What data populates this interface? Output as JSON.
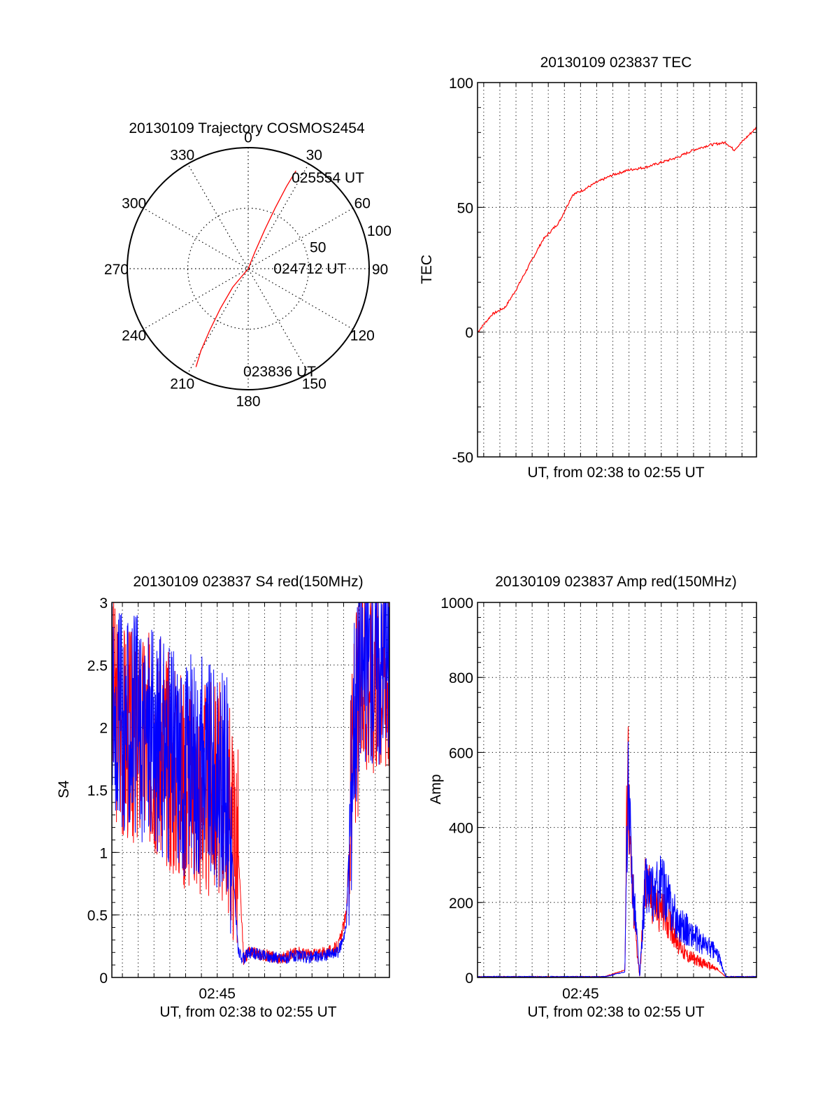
{
  "colors": {
    "red": "#ff0000",
    "blue": "#0000ff",
    "axis": "#000000",
    "grid": "#000000"
  },
  "chart_data": [
    {
      "id": "trajectory",
      "type": "polar",
      "title": "20130109 Trajectory COSMOS2454",
      "azimuth_labels": [
        "0",
        "30",
        "60",
        "90",
        "120",
        "150",
        "180",
        "210",
        "240",
        "270",
        "300",
        "330"
      ],
      "radial_labels": [
        "50",
        "100"
      ],
      "radius_max": 100,
      "track": {
        "color": "#ff0000",
        "points": [
          {
            "az": 208,
            "r": 92
          },
          {
            "az": 210,
            "r": 78
          },
          {
            "az": 212,
            "r": 60
          },
          {
            "az": 215,
            "r": 40
          },
          {
            "az": 220,
            "r": 20
          },
          {
            "az": 20,
            "r": 0
          },
          {
            "az": 22,
            "r": 15
          },
          {
            "az": 23,
            "r": 35
          },
          {
            "az": 24,
            "r": 55
          },
          {
            "az": 25,
            "r": 75
          },
          {
            "az": 26,
            "r": 90
          }
        ]
      },
      "annotations": [
        {
          "text": "025554 UT",
          "az": 28,
          "r": 85
        },
        {
          "text": "024712 UT",
          "az": 90,
          "r": 25
        },
        {
          "text": "023836 UT",
          "az": 180,
          "r": 85
        }
      ]
    },
    {
      "id": "tec",
      "type": "line",
      "title": "20130109 023837 TEC",
      "xlabel": "UT, from 02:38 to 02:55 UT",
      "ylabel": "TEC",
      "xlim": [
        "02:38:37",
        "02:55:54"
      ],
      "ylim": [
        -50,
        100
      ],
      "yticks": [
        -50,
        0,
        50,
        100
      ],
      "grid": true,
      "series": [
        {
          "color": "#ff0000",
          "x": [
            "02:38:37",
            "02:39:30",
            "02:40:20",
            "02:41:00",
            "02:41:50",
            "02:42:40",
            "02:43:40",
            "02:44:30",
            "02:45:10",
            "02:46:00",
            "02:47:00",
            "02:48:00",
            "02:49:00",
            "02:50:00",
            "02:51:00",
            "02:52:00",
            "02:53:00",
            "02:54:00",
            "02:54:30",
            "02:55:54"
          ],
          "y": [
            0,
            7,
            10,
            17,
            27,
            37,
            44,
            55,
            57,
            60,
            63,
            65,
            66,
            68,
            70,
            73,
            75,
            76,
            73,
            82
          ]
        }
      ]
    },
    {
      "id": "s4",
      "type": "line",
      "title": "20130109 023837 S4 red(150MHz)",
      "xlabel": "UT, from 02:38 to 02:55 UT",
      "ylabel": "S4",
      "xtick_labels": [
        {
          "x": "02:45:00",
          "label": "02:45"
        }
      ],
      "xlim": [
        "02:38:20",
        "02:55:54"
      ],
      "ylim": [
        0,
        3
      ],
      "yticks": [
        0,
        0.5,
        1,
        1.5,
        2,
        2.5,
        3
      ],
      "grid": true,
      "series": [
        {
          "color": "#ff0000",
          "x": [
            "02:38:20",
            "02:39:00",
            "02:40:00",
            "02:41:00",
            "02:42:00",
            "02:43:00",
            "02:44:00",
            "02:45:00",
            "02:45:40",
            "02:46:20",
            "02:46:40",
            "02:47:00",
            "02:48:00",
            "02:49:00",
            "02:50:00",
            "02:51:00",
            "02:52:00",
            "02:52:40",
            "02:53:10",
            "02:53:40",
            "02:54:30",
            "02:55:54"
          ],
          "y": [
            2.2,
            2.0,
            1.9,
            1.9,
            1.7,
            1.6,
            1.5,
            1.5,
            1.4,
            1.0,
            0.15,
            0.2,
            0.18,
            0.15,
            0.2,
            0.18,
            0.2,
            0.25,
            0.5,
            2.0,
            2.5,
            2.5
          ]
        },
        {
          "color": "#0000ff",
          "x": [
            "02:38:20",
            "02:39:00",
            "02:40:00",
            "02:41:00",
            "02:42:00",
            "02:43:00",
            "02:44:00",
            "02:45:00",
            "02:45:40",
            "02:46:20",
            "02:46:40",
            "02:47:00",
            "02:48:00",
            "02:49:00",
            "02:50:00",
            "02:51:00",
            "02:52:00",
            "02:52:40",
            "02:53:10",
            "02:53:40",
            "02:54:30",
            "02:55:54"
          ],
          "y": [
            2.3,
            2.0,
            2.0,
            1.9,
            1.8,
            1.7,
            1.7,
            1.6,
            1.5,
            0.2,
            0.15,
            0.2,
            0.17,
            0.15,
            0.17,
            0.16,
            0.18,
            0.2,
            0.4,
            2.2,
            2.6,
            2.6
          ]
        }
      ]
    },
    {
      "id": "amp",
      "type": "line",
      "title": "20130109 023837 Amp red(150MHz)",
      "xlabel": "UT, from 02:38 to 02:55 UT",
      "ylabel": "Amp",
      "xtick_labels": [
        {
          "x": "02:45:00",
          "label": "02:45"
        }
      ],
      "xlim": [
        "02:38:37",
        "02:55:54"
      ],
      "ylim": [
        0,
        1000
      ],
      "yticks": [
        0,
        200,
        400,
        600,
        800,
        1000
      ],
      "grid": true,
      "series": [
        {
          "color": "#ff0000",
          "x": [
            "02:38:37",
            "02:45:00",
            "02:46:30",
            "02:47:45",
            "02:47:55",
            "02:48:05",
            "02:48:20",
            "02:48:40",
            "02:49:00",
            "02:49:30",
            "02:50:00",
            "02:50:30",
            "02:51:00",
            "02:51:30",
            "02:52:00",
            "02:52:30",
            "02:53:00",
            "02:53:30",
            "02:54:00",
            "02:55:54"
          ],
          "y": [
            2,
            2,
            2,
            20,
            620,
            300,
            150,
            0,
            250,
            200,
            180,
            150,
            100,
            60,
            50,
            40,
            30,
            20,
            2,
            2
          ]
        },
        {
          "color": "#0000ff",
          "x": [
            "02:38:37",
            "02:45:00",
            "02:46:30",
            "02:47:45",
            "02:47:55",
            "02:48:05",
            "02:48:20",
            "02:48:40",
            "02:49:00",
            "02:49:30",
            "02:50:00",
            "02:50:30",
            "02:51:00",
            "02:51:30",
            "02:52:00",
            "02:52:30",
            "02:53:00",
            "02:53:30",
            "02:54:00",
            "02:55:54"
          ],
          "y": [
            2,
            2,
            2,
            15,
            500,
            350,
            200,
            0,
            250,
            220,
            250,
            200,
            150,
            130,
            110,
            90,
            80,
            60,
            2,
            2
          ]
        }
      ]
    }
  ]
}
